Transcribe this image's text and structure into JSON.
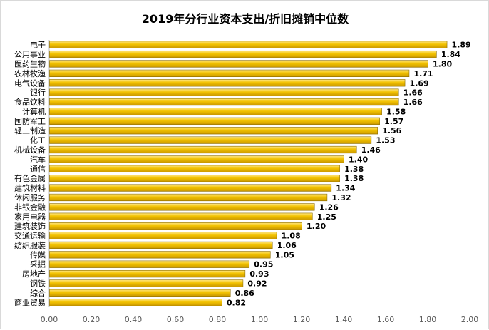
{
  "chart_data": {
    "type": "bar",
    "orientation": "horizontal",
    "title": "2019年分行业资本支出/折旧摊销中位数",
    "categories": [
      "电子",
      "公用事业",
      "医药生物",
      "农林牧渔",
      "电气设备",
      "银行",
      "食品饮料",
      "计算机",
      "国防军工",
      "轻工制造",
      "化工",
      "机械设备",
      "汽车",
      "通信",
      "有色金属",
      "建筑材料",
      "休闲服务",
      "非银金融",
      "家用电器",
      "建筑装饰",
      "交通运输",
      "纺织服装",
      "传媒",
      "采掘",
      "房地产",
      "钢铁",
      "综合",
      "商业贸易"
    ],
    "values": [
      1.89,
      1.84,
      1.8,
      1.71,
      1.69,
      1.66,
      1.66,
      1.58,
      1.57,
      1.56,
      1.53,
      1.46,
      1.4,
      1.38,
      1.38,
      1.34,
      1.32,
      1.26,
      1.25,
      1.2,
      1.08,
      1.06,
      1.05,
      0.95,
      0.93,
      0.92,
      0.86,
      0.82
    ],
    "value_labels": [
      "1.89",
      "1.84",
      "1.80",
      "1.71",
      "1.69",
      "1.66",
      "1.66",
      "1.58",
      "1.57",
      "1.56",
      "1.53",
      "1.46",
      "1.40",
      "1.38",
      "1.38",
      "1.34",
      "1.32",
      "1.26",
      "1.25",
      "1.20",
      "1.08",
      "1.06",
      "1.05",
      "0.95",
      "0.93",
      "0.92",
      "0.86",
      "0.82"
    ],
    "xlim": [
      0,
      2.0
    ],
    "x_ticks": [
      "0.00",
      "0.20",
      "0.40",
      "0.60",
      "0.80",
      "1.00",
      "1.20",
      "1.40",
      "1.60",
      "1.80",
      "2.00"
    ],
    "grid": false,
    "bar_color": "#F2C200",
    "bar_edge_color": "#8C6D00",
    "xlabel": "",
    "ylabel": ""
  }
}
